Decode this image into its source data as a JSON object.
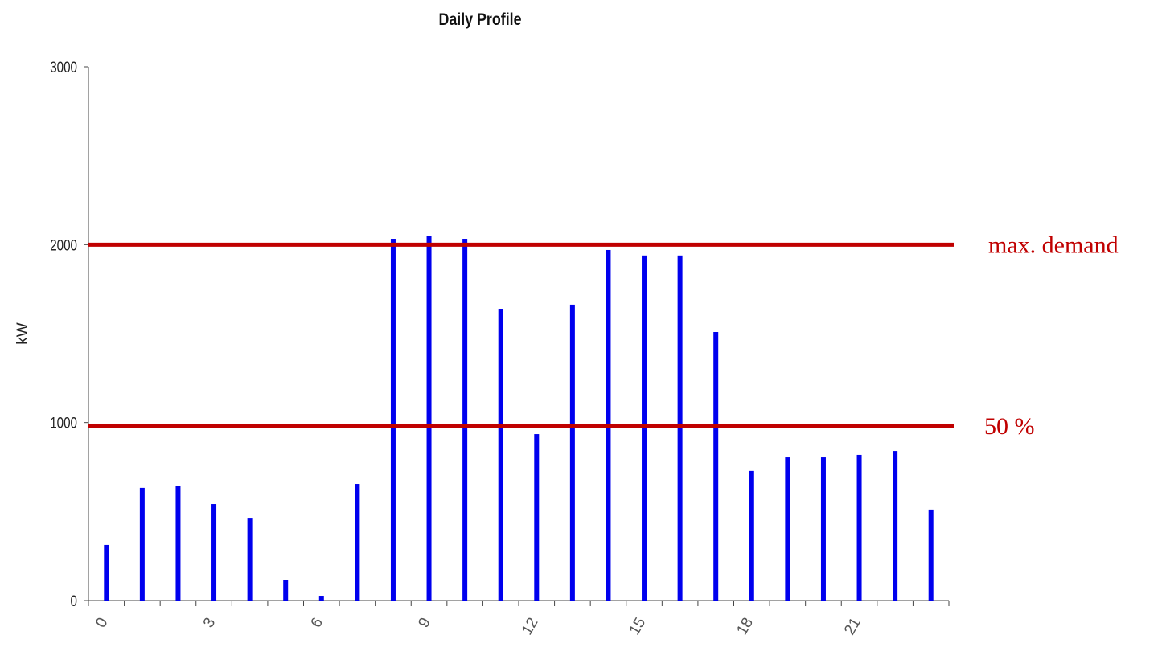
{
  "chart_data": {
    "type": "bar",
    "title": "Daily Profile",
    "y_label": "kW",
    "categories": [
      "0",
      null,
      null,
      "3",
      null,
      null,
      "6",
      null,
      null,
      "9",
      null,
      null,
      "12",
      null,
      null,
      "15",
      null,
      null,
      "18",
      null,
      null,
      "21",
      null,
      null
    ],
    "values": [
      312,
      633,
      642,
      542,
      465,
      117,
      27,
      655,
      2033,
      2047,
      2033,
      1640,
      935,
      1663,
      1970,
      1939,
      1939,
      1509,
      728,
      804,
      804,
      818,
      840,
      511
    ],
    "color": "#0000ee",
    "ylim": [
      0,
      3000
    ],
    "yticks": [
      0,
      1000,
      2000,
      3000
    ],
    "grid": false,
    "reference_lines": [
      {
        "value": 2000,
        "label": "max. demand",
        "color": "#c00000"
      },
      {
        "value": 980,
        "label": "50 %",
        "color": "#c00000"
      }
    ]
  }
}
